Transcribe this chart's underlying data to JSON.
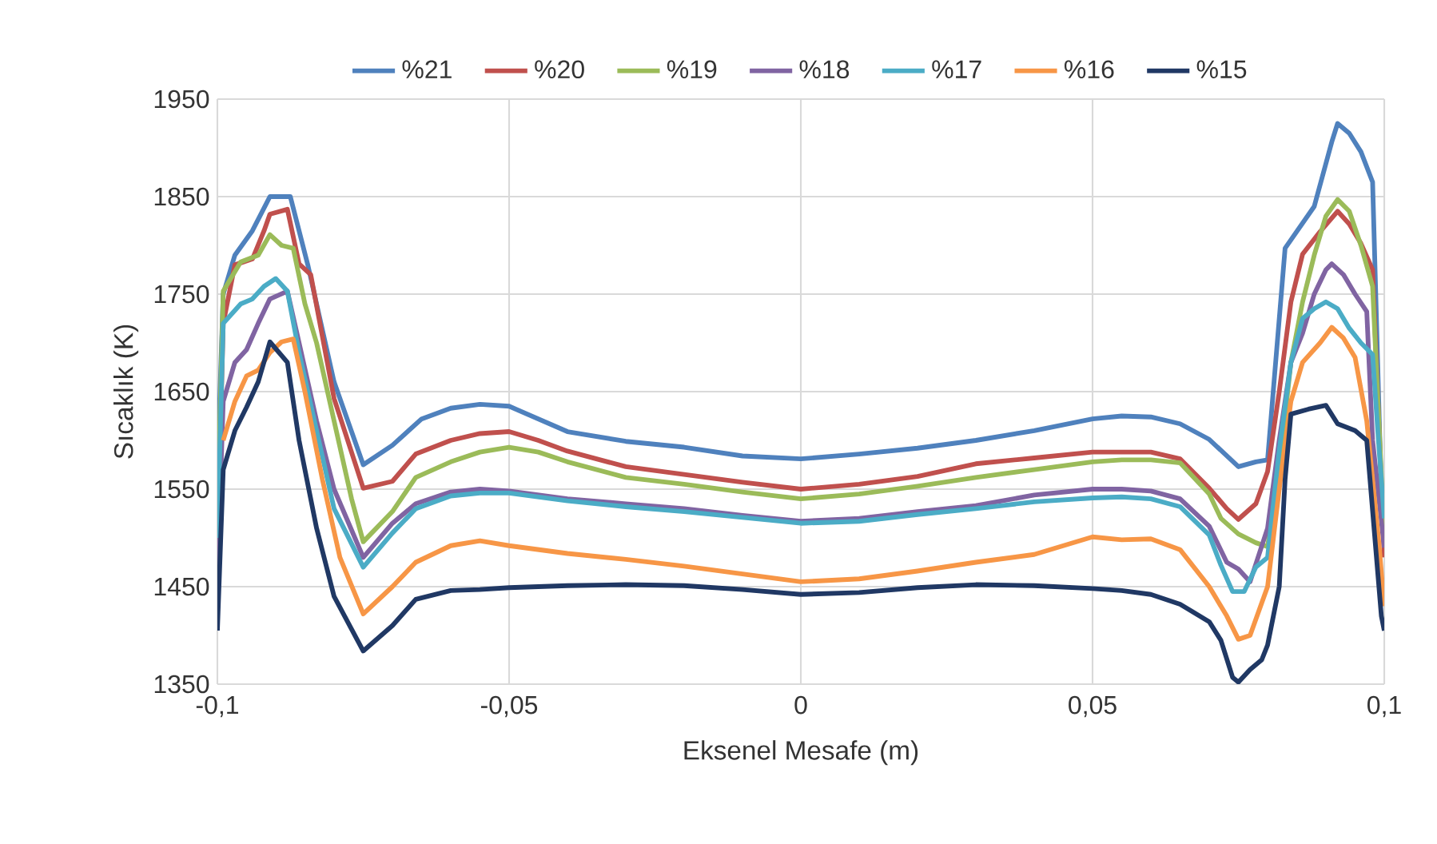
{
  "chart_data": {
    "type": "line",
    "xlabel": "Eksenel Mesafe (m)",
    "ylabel": "Sıcaklık (K)",
    "xlim": [
      -0.1,
      0.1
    ],
    "ylim": [
      1350,
      1950
    ],
    "xticks": [
      {
        "value": -0.1,
        "label": "-0,1"
      },
      {
        "value": -0.05,
        "label": "-0,05"
      },
      {
        "value": 0,
        "label": "0"
      },
      {
        "value": 0.05,
        "label": "0,05"
      },
      {
        "value": 0.1,
        "label": "0,1"
      }
    ],
    "yticks": [
      1350,
      1450,
      1550,
      1650,
      1750,
      1850,
      1950
    ],
    "grid": true,
    "legend": "top",
    "marker": "none",
    "line_style": "solid",
    "series": [
      {
        "name": "%21",
        "color": "#4f81bd",
        "x": [
          -0.1,
          -0.099,
          -0.097,
          -0.094,
          -0.091,
          -0.0875,
          -0.0845,
          -0.08,
          -0.075,
          -0.07,
          -0.065,
          -0.06,
          -0.055,
          -0.05,
          -0.04,
          -0.03,
          -0.02,
          -0.01,
          0,
          0.01,
          0.02,
          0.03,
          0.04,
          0.05,
          0.055,
          0.06,
          0.065,
          0.07,
          0.075,
          0.078,
          0.08,
          0.083,
          0.088,
          0.091,
          0.092,
          0.094,
          0.096,
          0.098,
          0.0995,
          0.1
        ],
        "values": [
          1570,
          1750,
          1790,
          1815,
          1850,
          1850,
          1780,
          1660,
          1575,
          1595,
          1622,
          1633,
          1637,
          1635,
          1609,
          1599,
          1593,
          1584,
          1581,
          1586,
          1592,
          1600,
          1610,
          1622,
          1625,
          1624,
          1617,
          1601,
          1573,
          1578,
          1580,
          1797,
          1840,
          1906,
          1925,
          1915,
          1896,
          1865,
          1545,
          1550
        ]
      },
      {
        "name": "%20",
        "color": "#c0504d",
        "x": [
          -0.1,
          -0.099,
          -0.097,
          -0.094,
          -0.092,
          -0.091,
          -0.088,
          -0.086,
          -0.084,
          -0.08,
          -0.075,
          -0.07,
          -0.066,
          -0.06,
          -0.055,
          -0.05,
          -0.045,
          -0.04,
          -0.03,
          -0.02,
          -0.01,
          0,
          0.01,
          0.02,
          0.03,
          0.04,
          0.05,
          0.055,
          0.06,
          0.065,
          0.07,
          0.073,
          0.075,
          0.078,
          0.08,
          0.082,
          0.084,
          0.086,
          0.089,
          0.092,
          0.094,
          0.096,
          0.098,
          0.1
        ],
        "values": [
          1490,
          1720,
          1780,
          1786,
          1815,
          1832,
          1837,
          1781,
          1770,
          1643,
          1551,
          1558,
          1586,
          1600,
          1607,
          1609,
          1600,
          1589,
          1573,
          1565,
          1557,
          1550,
          1555,
          1563,
          1576,
          1582,
          1588,
          1588,
          1588,
          1581,
          1551,
          1530,
          1519,
          1535,
          1568,
          1650,
          1742,
          1791,
          1814,
          1835,
          1822,
          1802,
          1775,
          1480
        ]
      },
      {
        "name": "%19",
        "color": "#9bbb59",
        "x": [
          -0.1,
          -0.099,
          -0.096,
          -0.093,
          -0.091,
          -0.089,
          -0.087,
          -0.085,
          -0.083,
          -0.08,
          -0.077,
          -0.075,
          -0.07,
          -0.066,
          -0.06,
          -0.055,
          -0.05,
          -0.045,
          -0.04,
          -0.03,
          -0.02,
          -0.01,
          0,
          0.01,
          0.02,
          0.03,
          0.04,
          0.05,
          0.055,
          0.06,
          0.065,
          0.07,
          0.072,
          0.075,
          0.078,
          0.08,
          0.082,
          0.084,
          0.086,
          0.088,
          0.09,
          0.092,
          0.094,
          0.096,
          0.098,
          0.1
        ],
        "values": [
          1520,
          1753,
          1783,
          1790,
          1811,
          1800,
          1797,
          1740,
          1700,
          1620,
          1540,
          1496,
          1527,
          1562,
          1578,
          1588,
          1593,
          1588,
          1578,
          1562,
          1555,
          1547,
          1540,
          1545,
          1553,
          1562,
          1570,
          1578,
          1580,
          1580,
          1577,
          1545,
          1520,
          1504,
          1495,
          1491,
          1570,
          1680,
          1742,
          1790,
          1830,
          1847,
          1835,
          1800,
          1758,
          1500
        ]
      },
      {
        "name": "%18",
        "color": "#8064a2",
        "x": [
          -0.1,
          -0.099,
          -0.097,
          -0.095,
          -0.093,
          -0.091,
          -0.088,
          -0.086,
          -0.083,
          -0.08,
          -0.075,
          -0.07,
          -0.066,
          -0.06,
          -0.055,
          -0.05,
          -0.04,
          -0.03,
          -0.02,
          -0.01,
          0,
          0.01,
          0.02,
          0.03,
          0.04,
          0.05,
          0.055,
          0.06,
          0.065,
          0.07,
          0.073,
          0.075,
          0.077,
          0.08,
          0.082,
          0.084,
          0.086,
          0.088,
          0.09,
          0.091,
          0.093,
          0.095,
          0.097,
          0.098,
          0.1
        ],
        "values": [
          1460,
          1640,
          1680,
          1693,
          1720,
          1745,
          1753,
          1700,
          1620,
          1550,
          1480,
          1515,
          1535,
          1547,
          1550,
          1548,
          1540,
          1535,
          1530,
          1523,
          1517,
          1520,
          1527,
          1533,
          1544,
          1550,
          1550,
          1548,
          1540,
          1512,
          1475,
          1468,
          1455,
          1510,
          1600,
          1680,
          1710,
          1750,
          1775,
          1781,
          1770,
          1750,
          1732,
          1600,
          1490
        ]
      },
      {
        "name": "%17",
        "color": "#4bacc6",
        "x": [
          -0.1,
          -0.099,
          -0.096,
          -0.094,
          -0.092,
          -0.09,
          -0.088,
          -0.086,
          -0.083,
          -0.08,
          -0.075,
          -0.07,
          -0.066,
          -0.06,
          -0.055,
          -0.05,
          -0.04,
          -0.03,
          -0.02,
          -0.01,
          0,
          0.01,
          0.02,
          0.03,
          0.04,
          0.05,
          0.055,
          0.06,
          0.065,
          0.07,
          0.072,
          0.074,
          0.076,
          0.078,
          0.08,
          0.082,
          0.084,
          0.086,
          0.088,
          0.09,
          0.092,
          0.094,
          0.096,
          0.098,
          0.099,
          0.1
        ],
        "values": [
          1500,
          1720,
          1740,
          1745,
          1758,
          1766,
          1753,
          1690,
          1610,
          1530,
          1470,
          1505,
          1530,
          1543,
          1546,
          1546,
          1538,
          1532,
          1527,
          1521,
          1515,
          1517,
          1524,
          1530,
          1537,
          1541,
          1542,
          1540,
          1532,
          1503,
          1472,
          1445,
          1445,
          1470,
          1480,
          1590,
          1680,
          1725,
          1735,
          1742,
          1735,
          1715,
          1700,
          1688,
          1600,
          1520
        ]
      },
      {
        "name": "%16",
        "color": "#f79646",
        "x": [
          -0.099,
          -0.097,
          -0.095,
          -0.093,
          -0.091,
          -0.089,
          -0.087,
          -0.085,
          -0.082,
          -0.079,
          -0.075,
          -0.07,
          -0.066,
          -0.06,
          -0.055,
          -0.05,
          -0.04,
          -0.03,
          -0.02,
          -0.01,
          0,
          0.01,
          0.02,
          0.03,
          0.04,
          0.05,
          0.055,
          0.06,
          0.065,
          0.07,
          0.073,
          0.075,
          0.077,
          0.08,
          0.082,
          0.084,
          0.086,
          0.089,
          0.091,
          0.093,
          0.095,
          0.097,
          0.099,
          0.1
        ],
        "values": [
          1600,
          1640,
          1666,
          1672,
          1690,
          1701,
          1704,
          1650,
          1560,
          1480,
          1422,
          1450,
          1475,
          1492,
          1497,
          1492,
          1484,
          1478,
          1471,
          1463,
          1455,
          1458,
          1466,
          1475,
          1483,
          1501,
          1498,
          1499,
          1488,
          1450,
          1420,
          1396,
          1400,
          1450,
          1550,
          1640,
          1680,
          1700,
          1716,
          1705,
          1685,
          1620,
          1500,
          1430
        ]
      },
      {
        "name": "%15",
        "color": "#203864",
        "x": [
          -0.1,
          -0.099,
          -0.097,
          -0.095,
          -0.093,
          -0.091,
          -0.088,
          -0.086,
          -0.083,
          -0.08,
          -0.075,
          -0.07,
          -0.066,
          -0.06,
          -0.055,
          -0.05,
          -0.04,
          -0.03,
          -0.02,
          -0.01,
          0,
          0.01,
          0.02,
          0.03,
          0.04,
          0.05,
          0.055,
          0.06,
          0.065,
          0.07,
          0.072,
          0.074,
          0.075,
          0.077,
          0.079,
          0.08,
          0.082,
          0.083,
          0.084,
          0.087,
          0.09,
          0.092,
          0.095,
          0.097,
          0.0995,
          0.1
        ],
        "values": [
          1405,
          1570,
          1610,
          1634,
          1660,
          1701,
          1680,
          1600,
          1510,
          1440,
          1384,
          1410,
          1437,
          1446,
          1447,
          1449,
          1451,
          1452,
          1451,
          1447,
          1442,
          1444,
          1449,
          1452,
          1451,
          1448,
          1446,
          1442,
          1432,
          1414,
          1395,
          1357,
          1352,
          1365,
          1375,
          1390,
          1450,
          1560,
          1627,
          1632,
          1636,
          1617,
          1610,
          1600,
          1420,
          1405
        ]
      }
    ]
  }
}
